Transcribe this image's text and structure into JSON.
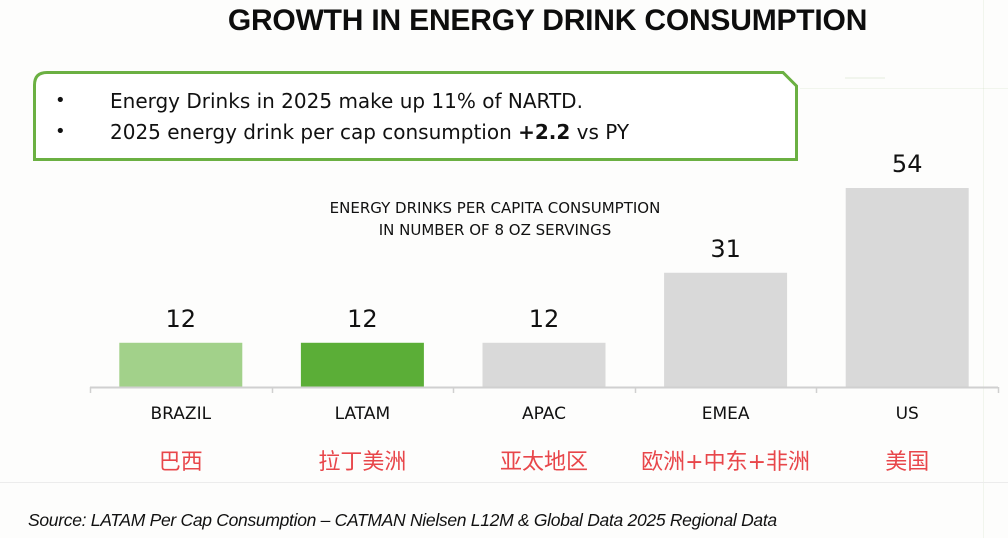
{
  "title": "GROWTH IN ENERGY DRINK CONSUMPTION",
  "callout": {
    "border_color": "#6BB042",
    "bullets": [
      {
        "pre": "Energy Drinks in 2025 make up 11% of NARTD.",
        "bold": "",
        "post": ""
      },
      {
        "pre": "2025 energy drink per cap consumption ",
        "bold": "+2.2",
        "post": " vs PY"
      }
    ],
    "bullet_glyph": "•"
  },
  "chart_data": {
    "type": "bar",
    "title": "ENERGY DRINKS PER CAPITA CONSUMPTION",
    "subtitle": "IN NUMBER OF 8 OZ SERVINGS",
    "xlabel": "",
    "ylabel": "",
    "ylim": [
      0,
      54
    ],
    "grid": false,
    "legend": "none",
    "categories": [
      "BRAZIL",
      "LATAM",
      "APAC",
      "EMEA",
      "US"
    ],
    "categories_zh": [
      "巴西",
      "拉丁美洲",
      "亚太地区",
      "欧洲+中东+非洲",
      "美国"
    ],
    "values": [
      12,
      12,
      12,
      31,
      54
    ],
    "data_labels": [
      "12",
      "12",
      "12",
      "31",
      "54"
    ],
    "colors": [
      "#A2D18A",
      "#5BAE37",
      "#D9D9D9",
      "#D9D9D9",
      "#D9D9D9"
    ],
    "zh_label_color": "#E8464A",
    "axis_color": "#D0D0D0"
  },
  "source": "Source: LATAM Per Cap Consumption – CATMAN Nielsen L12M & Global Data 2025 Regional Data"
}
